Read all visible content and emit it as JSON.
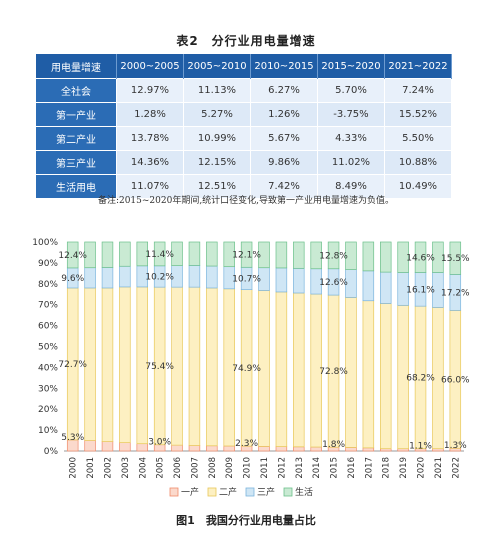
{
  "table": {
    "title": "表2　分行业用电量增速",
    "headers": [
      "用电量增速",
      "2000~2005",
      "2005~2010",
      "2010~2015",
      "2015~2020",
      "2021~2022"
    ],
    "rows": [
      {
        "name": "全社会",
        "values": [
          "12.97%",
          "11.13%",
          "6.27%",
          "5.70%",
          "7.24%"
        ]
      },
      {
        "name": "第一产业",
        "values": [
          "1.28%",
          "5.27%",
          "1.26%",
          "-3.75%",
          "15.52%"
        ]
      },
      {
        "name": "第二产业",
        "values": [
          "13.78%",
          "10.99%",
          "5.67%",
          "4.33%",
          "5.50%"
        ]
      },
      {
        "name": "第三产业",
        "values": [
          "14.36%",
          "12.15%",
          "9.86%",
          "11.02%",
          "10.88%"
        ]
      },
      {
        "name": "生活用电",
        "values": [
          "11.07%",
          "12.51%",
          "7.42%",
          "8.49%",
          "10.49%"
        ]
      }
    ],
    "note": "备注:2015~2020年期间,统计口径变化,导致第一产业用电量增速为负值。"
  },
  "figure": {
    "caption": "图1　我国分行业用电量占比"
  },
  "chart_data": {
    "type": "bar",
    "stacked": true,
    "categories": [
      "2000",
      "2001",
      "2002",
      "2003",
      "2004",
      "2005",
      "2006",
      "2007",
      "2008",
      "2009",
      "2010",
      "2011",
      "2012",
      "2013",
      "2014",
      "2015",
      "2016",
      "2017",
      "2018",
      "2019",
      "2020",
      "2021",
      "2022"
    ],
    "series": [
      {
        "name": "一产",
        "color": "#f08a6a",
        "fill": "#fbd9cc",
        "values": [
          5.3,
          5.0,
          4.5,
          4.0,
          3.5,
          3.0,
          2.8,
          2.6,
          2.5,
          2.4,
          2.3,
          2.2,
          2.1,
          2.0,
          1.9,
          1.8,
          1.7,
          1.5,
          1.1,
          1.1,
          1.1,
          1.1,
          1.3
        ]
      },
      {
        "name": "二产",
        "color": "#e8c85a",
        "fill": "#fdf0c2",
        "values": [
          72.7,
          73.0,
          73.5,
          74.5,
          75.0,
          75.4,
          75.6,
          75.8,
          75.5,
          75.2,
          74.9,
          74.6,
          74.0,
          73.6,
          73.2,
          72.8,
          71.8,
          70.4,
          69.5,
          68.6,
          68.2,
          67.6,
          66.0
        ]
      },
      {
        "name": "三产",
        "color": "#7cb5dd",
        "fill": "#cfe6f5",
        "values": [
          9.6,
          9.7,
          9.8,
          9.9,
          10.1,
          10.2,
          10.3,
          10.4,
          10.5,
          10.6,
          10.7,
          10.9,
          11.5,
          11.8,
          12.1,
          12.6,
          13.3,
          14.3,
          15.0,
          15.7,
          16.1,
          16.7,
          17.2
        ]
      },
      {
        "name": "生活",
        "color": "#6cc08b",
        "fill": "#c9ead3",
        "values": [
          12.4,
          12.3,
          12.2,
          11.6,
          11.4,
          11.4,
          11.3,
          11.2,
          11.5,
          11.8,
          12.1,
          12.3,
          12.4,
          12.6,
          12.8,
          12.8,
          13.2,
          13.8,
          14.4,
          14.6,
          14.6,
          14.6,
          15.5
        ]
      }
    ],
    "annotations": [
      {
        "series": "一产",
        "category": "2000",
        "label": "5.3%"
      },
      {
        "series": "一产",
        "category": "2005",
        "label": "3.0%"
      },
      {
        "series": "一产",
        "category": "2010",
        "label": "2.3%"
      },
      {
        "series": "一产",
        "category": "2015",
        "label": "1.8%"
      },
      {
        "series": "一产",
        "category": "2020",
        "label": "1.1%"
      },
      {
        "series": "一产",
        "category": "2022",
        "label": "1.3%"
      },
      {
        "series": "二产",
        "category": "2000",
        "label": "72.7%"
      },
      {
        "series": "二产",
        "category": "2005",
        "label": "75.4%"
      },
      {
        "series": "二产",
        "category": "2010",
        "label": "74.9%"
      },
      {
        "series": "二产",
        "category": "2015",
        "label": "72.8%"
      },
      {
        "series": "二产",
        "category": "2020",
        "label": "68.2%"
      },
      {
        "series": "二产",
        "category": "2022",
        "label": "66.0%"
      },
      {
        "series": "三产",
        "category": "2000",
        "label": "9.6%"
      },
      {
        "series": "三产",
        "category": "2005",
        "label": "10.2%"
      },
      {
        "series": "三产",
        "category": "2010",
        "label": "10.7%"
      },
      {
        "series": "三产",
        "category": "2015",
        "label": "12.6%"
      },
      {
        "series": "三产",
        "category": "2020",
        "label": "16.1%"
      },
      {
        "series": "三产",
        "category": "2022",
        "label": "17.2%"
      },
      {
        "series": "生活",
        "category": "2000",
        "label": "12.4%"
      },
      {
        "series": "生活",
        "category": "2005",
        "label": "11.4%"
      },
      {
        "series": "生活",
        "category": "2010",
        "label": "12.1%"
      },
      {
        "series": "生活",
        "category": "2015",
        "label": "12.8%"
      },
      {
        "series": "生活",
        "category": "2020",
        "label": "14.6%"
      },
      {
        "series": "生活",
        "category": "2022",
        "label": "15.5%"
      }
    ],
    "yticks": [
      "0%",
      "10%",
      "20%",
      "30%",
      "40%",
      "50%",
      "60%",
      "70%",
      "80%",
      "90%",
      "100%"
    ],
    "ylim": [
      0,
      100
    ],
    "legend_position": "bottom",
    "grid": false
  }
}
